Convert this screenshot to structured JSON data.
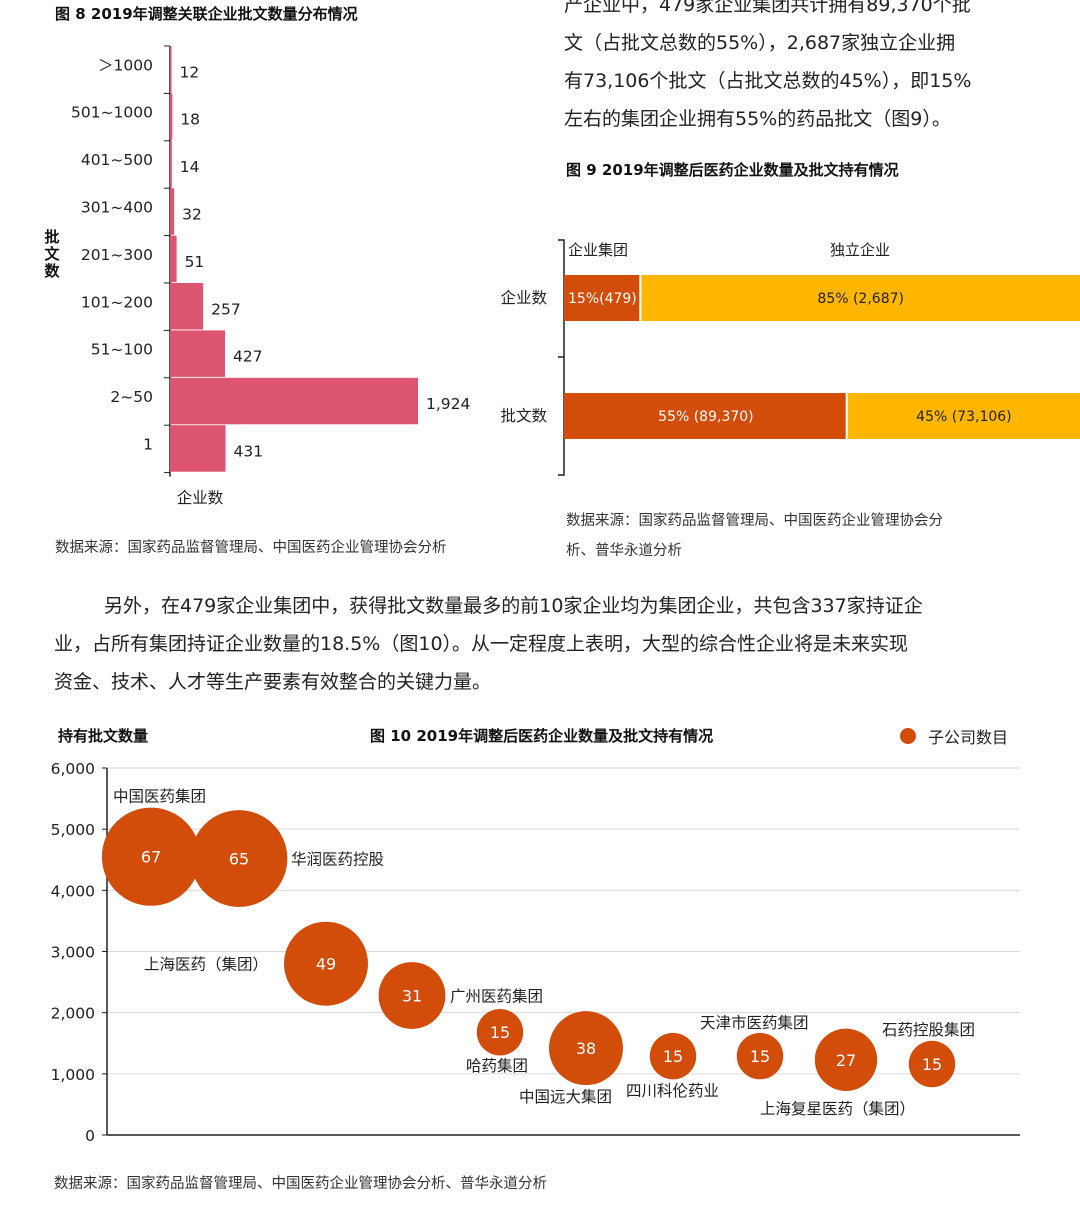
{
  "fig8": {
    "title": "图 8 2019年调整关联企业批文数量分布情况",
    "ylabel": "批文数",
    "xlabel": "企业数",
    "source": "数据来源：国家药品监督管理局、中国医药企业管理协会分析"
  },
  "top_paragraph": {
    "lines": [
      "产企业中，479家企业集团共计拥有89,370个批",
      "文（占批文总数的55%），2,687家独立企业拥",
      "有73,106个批文（占批文总数的45%），即15%",
      "左右的集团企业拥有55%的药品批文（图9）。"
    ]
  },
  "fig9": {
    "title": "图 9 2019年调整后医药企业数量及批文持有情况",
    "source_lines": [
      "数据来源：国家药品监督管理局、中国医药企业管理协会分",
      "析、普华永道分析"
    ]
  },
  "middle_paragraph": {
    "lines": [
      "另外，在479家企业集团中，获得批文数量最多的前10家企业均为集团企业，共包含337家持证企",
      "业，占所有集团持证企业数量的18.5%（图10）。从一定程度上表明，大型的综合性企业将是未来实现",
      "资金、技术、人才等生产要素有效整合的关键力量。"
    ]
  },
  "fig10": {
    "title": "图 10 2019年调整后医药企业数量及批文持有情况",
    "ylabel": "持有批文数量",
    "legend": "子公司数目",
    "source": "数据来源：国家药品监督管理局、中国医药企业管理协会分析、普华永道分析"
  },
  "colors": {
    "fig8_bar": "#dd5570",
    "group": "#d24c0a",
    "independent": "#ffb600",
    "bubble": "#d24c0a"
  },
  "chart_data": [
    {
      "id": "fig8",
      "type": "bar",
      "orientation": "horizontal",
      "categories": [
        ">1000",
        "501~1000",
        "401~500",
        "301~400",
        "201~300",
        "101~200",
        "51~100",
        "2~50",
        "1"
      ],
      "category_labels": [
        "＞1000",
        "501~1000",
        "401~500",
        "301~400",
        "201~300",
        "101~200",
        "51~100",
        "2~50",
        "1"
      ],
      "values": [
        12,
        18,
        14,
        32,
        51,
        257,
        427,
        1924,
        431
      ],
      "value_labels": [
        "12",
        "18",
        "14",
        "32",
        "51",
        "257",
        "427",
        "1,924",
        "431"
      ],
      "title": "图 8 2019年调整关联企业批文数量分布情况",
      "xlabel": "企业数",
      "ylabel": "批文数"
    },
    {
      "id": "fig9",
      "type": "bar",
      "stacked": true,
      "percent": true,
      "categories": [
        "企业数",
        "批文数"
      ],
      "series": [
        {
          "name": "企业集团",
          "values": [
            15,
            55
          ],
          "counts": [
            479,
            89370
          ],
          "labels": [
            "15%(479)",
            "55% (89,370)"
          ]
        },
        {
          "name": "独立企业",
          "values": [
            85,
            45
          ],
          "counts": [
            2687,
            73106
          ],
          "labels": [
            "85% (2,687)",
            "45% (73,106)"
          ]
        }
      ],
      "title": "图 9 2019年调整后医药企业数量及批文持有情况"
    },
    {
      "id": "fig10",
      "type": "scatter",
      "bubble": true,
      "title": "图 10 2019年调整后医药企业数量及批文持有情况",
      "ylabel": "持有批文数量",
      "ylim": [
        0,
        6000
      ],
      "yticks": [
        0,
        1000,
        2000,
        3000,
        4000,
        5000,
        6000
      ],
      "ytick_labels": [
        "0",
        "1,000",
        "2,000",
        "3,000",
        "4,000",
        "5,000",
        "6,000"
      ],
      "grid": true,
      "legend": "top-right",
      "series_name": "子公司数目",
      "points": [
        {
          "name": "中国医药集团",
          "rank": 1,
          "y": 4550,
          "size": 67
        },
        {
          "name": "华润医药控股",
          "rank": 2,
          "y": 4520,
          "size": 65
        },
        {
          "name": "上海医药（集团）",
          "rank": 3,
          "y": 2800,
          "size": 49
        },
        {
          "name": "广州医药集团",
          "rank": 4,
          "y": 2280,
          "size": 31
        },
        {
          "name": "哈药集团",
          "rank": 5,
          "y": 1680,
          "size": 15
        },
        {
          "name": "中国远大集团",
          "rank": 6,
          "y": 1420,
          "size": 38
        },
        {
          "name": "四川科伦药业",
          "rank": 7,
          "y": 1290,
          "size": 15
        },
        {
          "name": "天津市医药集团",
          "rank": 8,
          "y": 1290,
          "size": 15
        },
        {
          "name": "上海复星医药（集团）",
          "rank": 9,
          "y": 1230,
          "size": 27
        },
        {
          "name": "石药控股集团",
          "rank": 10,
          "y": 1160,
          "size": 15
        }
      ]
    }
  ]
}
